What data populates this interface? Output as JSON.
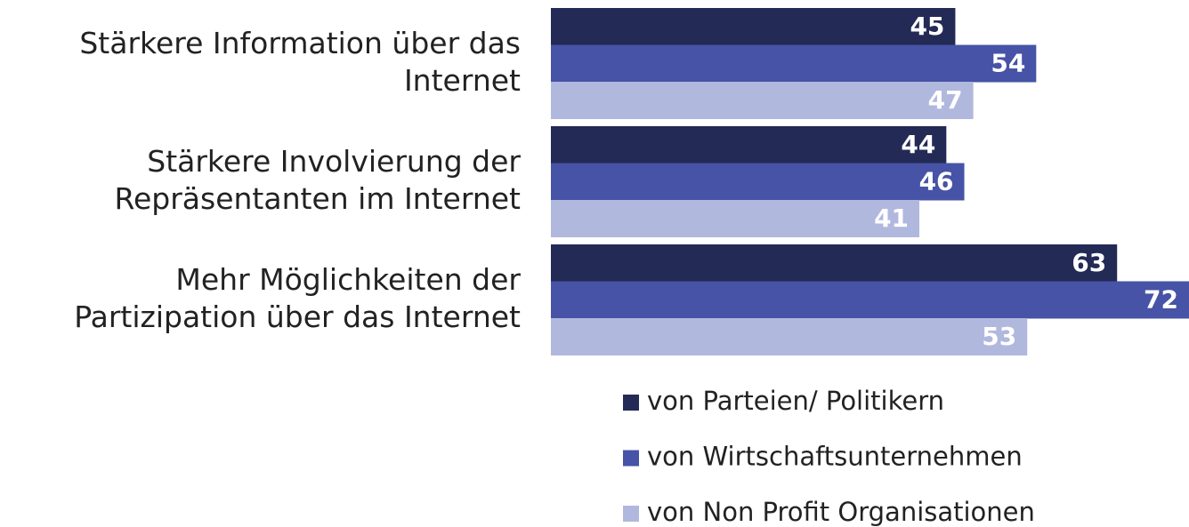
{
  "chart_data": {
    "type": "barh",
    "categories": [
      [
        "Stärkere Information über das",
        "Internet"
      ],
      [
        "Stärkere Involvierung der",
        "Repräsentanten im Internet"
      ],
      [
        "Mehr Möglichkeiten der",
        "Partizipation über das Internet"
      ]
    ],
    "series": [
      {
        "name": "von Parteien/ Politikern",
        "color": "#232a55",
        "values": [
          45,
          44,
          63
        ]
      },
      {
        "name": "von Wirtschaftsunternehmen",
        "color": "#4653a6",
        "values": [
          54,
          46,
          72
        ]
      },
      {
        "name": "von Non Profit Organisationen",
        "color": "#b1b8de",
        "values": [
          47,
          41,
          53
        ]
      }
    ],
    "xlim": [
      0,
      71
    ]
  }
}
